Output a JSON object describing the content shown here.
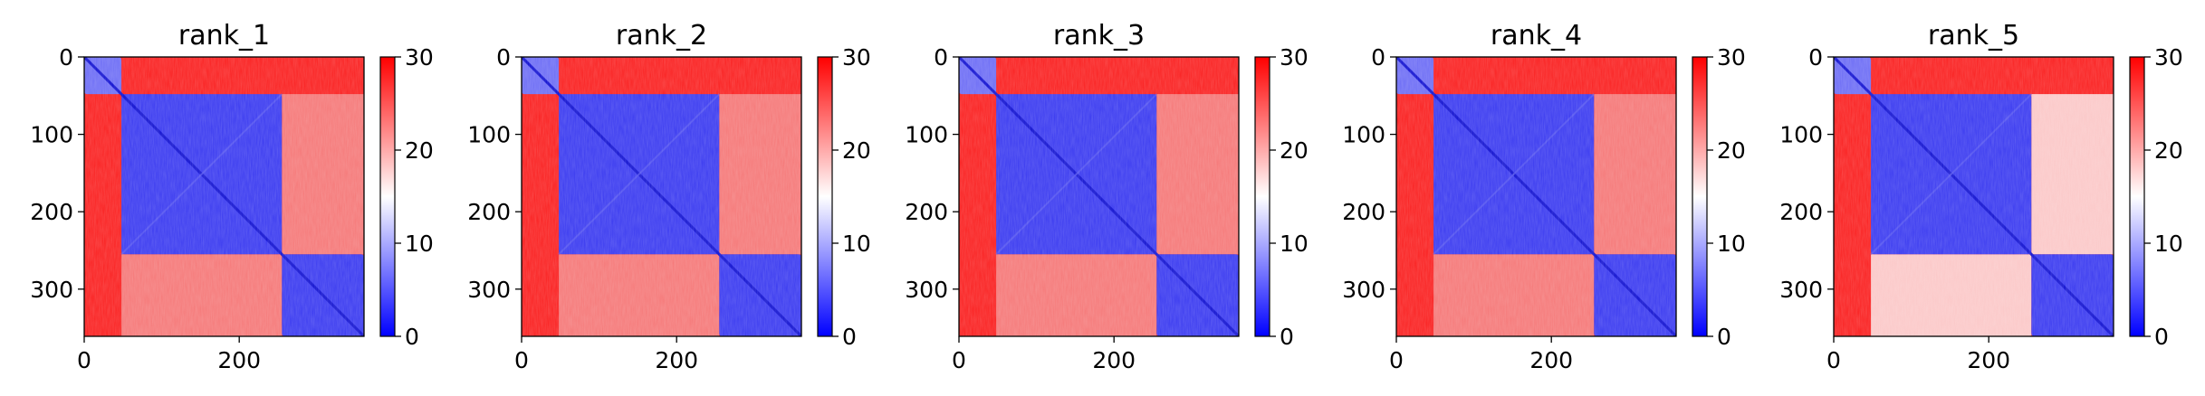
{
  "chart_data": [
    {
      "type": "heatmap",
      "title": "rank_1",
      "matrix_size": 361,
      "x_ticks": [
        0,
        200
      ],
      "y_ticks": [
        0,
        100,
        200,
        300
      ],
      "domains": [
        [
          0,
          48
        ],
        [
          48,
          255
        ],
        [
          255,
          361
        ]
      ],
      "colorbar": {
        "ticks": [
          0,
          10,
          20,
          30
        ],
        "range": [
          0,
          30
        ],
        "colormap": "bwr"
      }
    },
    {
      "type": "heatmap",
      "title": "rank_2",
      "matrix_size": 361,
      "x_ticks": [
        0,
        200
      ],
      "y_ticks": [
        0,
        100,
        200,
        300
      ],
      "domains": [
        [
          0,
          48
        ],
        [
          48,
          255
        ],
        [
          255,
          361
        ]
      ],
      "colorbar": {
        "ticks": [
          0,
          10,
          20,
          30
        ],
        "range": [
          0,
          30
        ],
        "colormap": "bwr"
      }
    },
    {
      "type": "heatmap",
      "title": "rank_3",
      "matrix_size": 361,
      "x_ticks": [
        0,
        200
      ],
      "y_ticks": [
        0,
        100,
        200,
        300
      ],
      "domains": [
        [
          0,
          48
        ],
        [
          48,
          255
        ],
        [
          255,
          361
        ]
      ],
      "colorbar": {
        "ticks": [
          0,
          10,
          20,
          30
        ],
        "range": [
          0,
          30
        ],
        "colormap": "bwr"
      }
    },
    {
      "type": "heatmap",
      "title": "rank_4",
      "matrix_size": 361,
      "x_ticks": [
        0,
        200
      ],
      "y_ticks": [
        0,
        100,
        200,
        300
      ],
      "domains": [
        [
          0,
          48
        ],
        [
          48,
          255
        ],
        [
          255,
          361
        ]
      ],
      "colorbar": {
        "ticks": [
          0,
          10,
          20,
          30
        ],
        "range": [
          0,
          30
        ],
        "colormap": "bwr"
      }
    },
    {
      "type": "heatmap",
      "title": "rank_5",
      "matrix_size": 361,
      "x_ticks": [
        0,
        200
      ],
      "y_ticks": [
        0,
        100,
        200,
        300
      ],
      "domains": [
        [
          0,
          48
        ],
        [
          48,
          255
        ],
        [
          255,
          361
        ]
      ],
      "colorbar": {
        "ticks": [
          0,
          10,
          20,
          30
        ],
        "range": [
          0,
          30
        ],
        "colormap": "bwr"
      }
    }
  ],
  "colors": {
    "low": "#0000ff",
    "mid": "#ffffff",
    "high": "#ff0000"
  }
}
